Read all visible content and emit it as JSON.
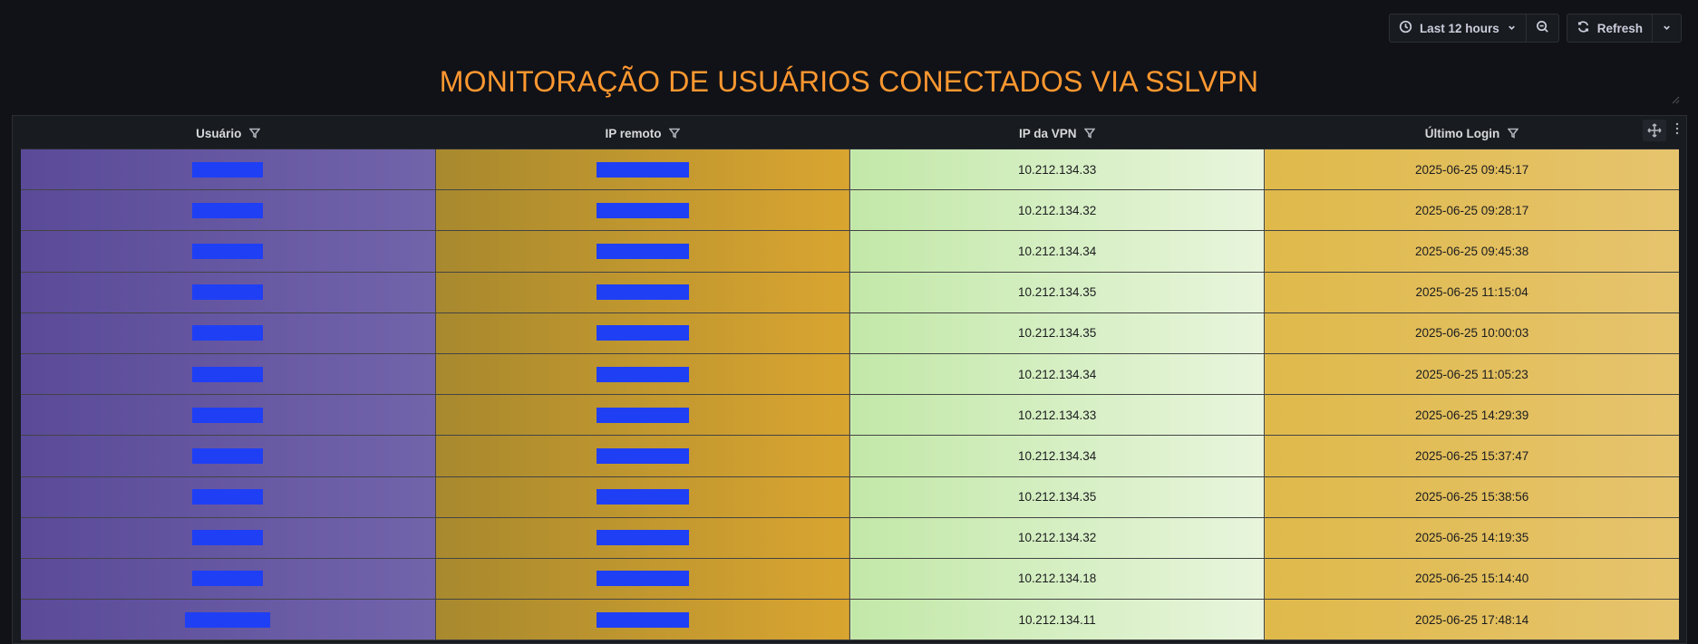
{
  "toolbar": {
    "time_range_label": "Last 12 hours",
    "refresh_label": "Refresh"
  },
  "panel": {
    "title": "MONITORAÇÃO DE USUÁRIOS CONECTADOS VIA SSLVPN"
  },
  "table": {
    "columns": [
      "Usuário",
      "IP remoto",
      "IP da VPN",
      "Último Login"
    ],
    "rows": [
      {
        "vpn_ip": "10.212.134.33",
        "last_login": "2025-06-25 09:45:17"
      },
      {
        "vpn_ip": "10.212.134.32",
        "last_login": "2025-06-25 09:28:17"
      },
      {
        "vpn_ip": "10.212.134.34",
        "last_login": "2025-06-25 09:45:38"
      },
      {
        "vpn_ip": "10.212.134.35",
        "last_login": "2025-06-25 11:15:04"
      },
      {
        "vpn_ip": "10.212.134.35",
        "last_login": "2025-06-25 10:00:03"
      },
      {
        "vpn_ip": "10.212.134.34",
        "last_login": "2025-06-25 11:05:23"
      },
      {
        "vpn_ip": "10.212.134.33",
        "last_login": "2025-06-25 14:29:39"
      },
      {
        "vpn_ip": "10.212.134.34",
        "last_login": "2025-06-25 15:37:47"
      },
      {
        "vpn_ip": "10.212.134.35",
        "last_login": "2025-06-25 15:38:56"
      },
      {
        "vpn_ip": "10.212.134.32",
        "last_login": "2025-06-25 14:19:35"
      },
      {
        "vpn_ip": "10.212.134.18",
        "last_login": "2025-06-25 15:14:40"
      },
      {
        "vpn_ip": "10.212.134.11",
        "last_login": "2025-06-25 17:48:14"
      }
    ]
  },
  "colors": {
    "title": "#ff9830",
    "redaction": "#1f3ff5",
    "user_col": "#6657a3",
    "remote_ip_col": "#c39a30",
    "vpn_ip_col": "#d5eec3",
    "login_col": "#e2bf5c"
  },
  "icons": [
    "clock-icon",
    "chevron-down-icon",
    "zoom-out-icon",
    "refresh-icon",
    "filter-icon",
    "move-icon",
    "menu-icon"
  ]
}
